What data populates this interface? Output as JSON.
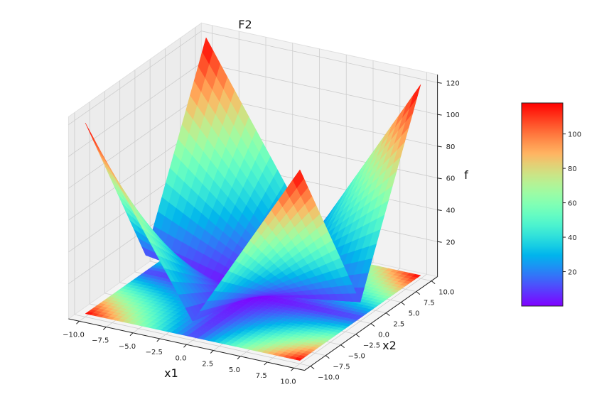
{
  "chart_data": {
    "type": "surface",
    "title": "F2",
    "xlabel": "x1",
    "ylabel": "x2",
    "zlabel": "f",
    "x1_values": [
      -10,
      -8,
      -6,
      -4,
      -2,
      0,
      2,
      4,
      6,
      8,
      10
    ],
    "x2_values": [
      -10,
      -8,
      -6,
      -4,
      -2,
      0,
      2,
      4,
      6,
      8,
      10
    ],
    "z_grid": [
      [
        120,
        98,
        76,
        54,
        32,
        10,
        32,
        54,
        76,
        98,
        120
      ],
      [
        98,
        80,
        62,
        44,
        26,
        8,
        26,
        44,
        62,
        80,
        98
      ],
      [
        76,
        62,
        48,
        34,
        20,
        6,
        20,
        34,
        48,
        62,
        76
      ],
      [
        54,
        44,
        34,
        24,
        14,
        4,
        14,
        24,
        34,
        44,
        54
      ],
      [
        32,
        26,
        20,
        14,
        8,
        2,
        8,
        14,
        20,
        26,
        32
      ],
      [
        10,
        8,
        6,
        4,
        2,
        0,
        2,
        4,
        6,
        8,
        10
      ],
      [
        32,
        26,
        20,
        14,
        8,
        2,
        8,
        14,
        20,
        26,
        32
      ],
      [
        54,
        44,
        34,
        24,
        14,
        4,
        14,
        24,
        34,
        44,
        54
      ],
      [
        76,
        62,
        48,
        34,
        20,
        6,
        20,
        34,
        48,
        62,
        76
      ],
      [
        98,
        80,
        62,
        44,
        26,
        8,
        26,
        44,
        62,
        80,
        98
      ],
      [
        120,
        98,
        76,
        54,
        32,
        10,
        32,
        54,
        76,
        98,
        120
      ]
    ],
    "xlim": [
      -10,
      10
    ],
    "ylim": [
      -10,
      10
    ],
    "zlim": [
      0,
      120
    ],
    "colormap": "rainbow",
    "floor_contour": true,
    "x1_ticks": [
      "−10.0",
      "−7.5",
      "−5.0",
      "−2.5",
      "0.0",
      "2.5",
      "5.0",
      "7.5",
      "10.0"
    ],
    "x1_tick_values": [
      -10,
      -7.5,
      -5,
      -2.5,
      0,
      2.5,
      5,
      7.5,
      10
    ],
    "x2_ticks": [
      "−10.0",
      "−7.5",
      "−5.0",
      "−2.5",
      "0.0",
      "2.5",
      "5.0",
      "7.5",
      "10.0"
    ],
    "x2_tick_values": [
      -10,
      -7.5,
      -5,
      -2.5,
      0,
      2.5,
      5,
      7.5,
      10
    ],
    "z_ticks": [
      "20",
      "40",
      "60",
      "80",
      "100",
      "120"
    ],
    "z_tick_values": [
      20,
      40,
      60,
      80,
      100,
      120
    ],
    "colorbar": {
      "range": [
        0,
        118
      ],
      "ticks": [
        "20",
        "40",
        "60",
        "80",
        "100"
      ],
      "tick_values": [
        20,
        40,
        60,
        80,
        100
      ]
    },
    "grid": true
  }
}
